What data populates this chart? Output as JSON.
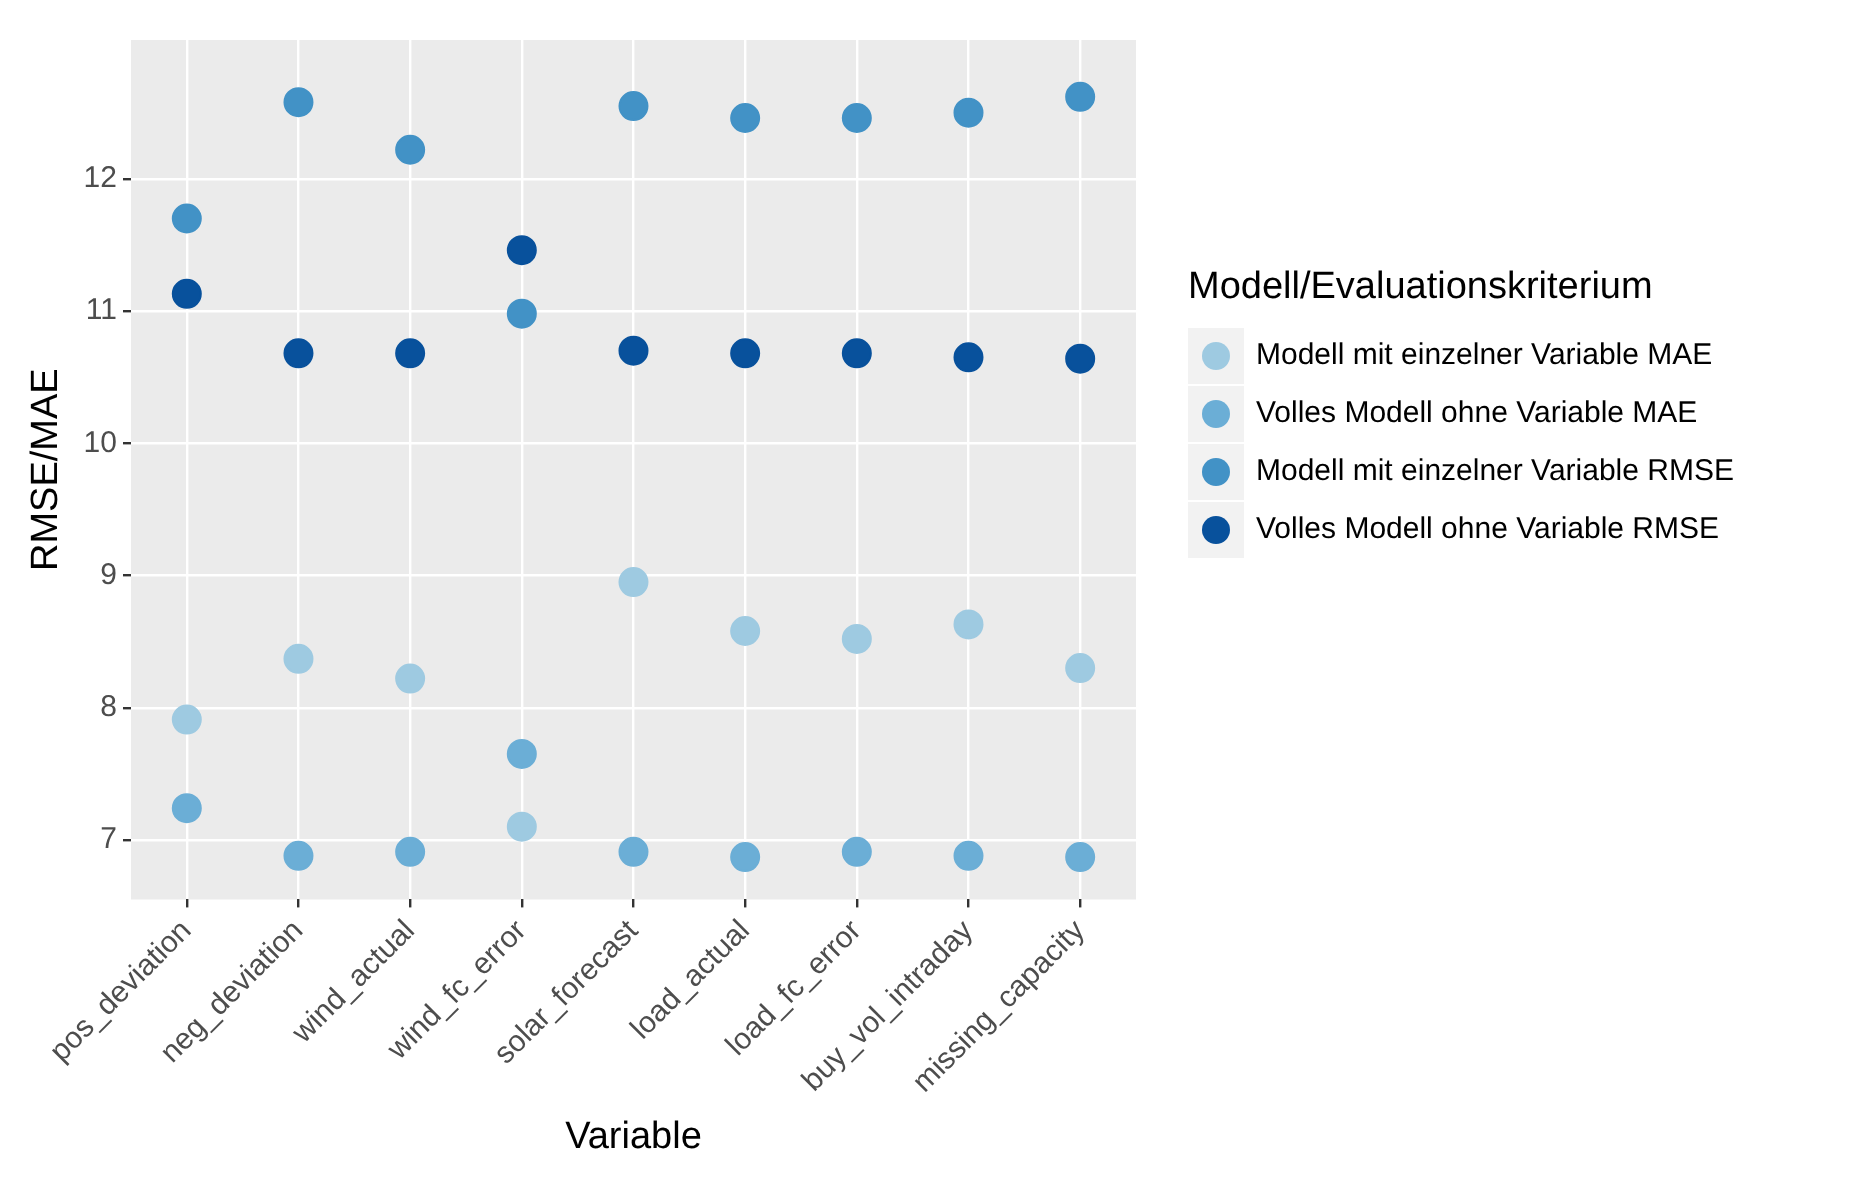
{
  "chart_data": {
    "type": "scatter",
    "xlabel": "Variable",
    "ylabel": "RMSE/MAE",
    "legend_title": "Modell/Evaluationskriterium",
    "legend": "right",
    "grid": true,
    "marker": "circle",
    "categories": [
      "pos_deviation",
      "neg_deviation",
      "wind_actual",
      "wind_fc_error",
      "solar_forecast",
      "load_actual",
      "load_fc_error",
      "buy_vol_intraday",
      "missing_capacity"
    ],
    "ylim": [
      6.55,
      13.05
    ],
    "yticks": [
      7,
      8,
      9,
      10,
      11,
      12
    ],
    "series": [
      {
        "name": "Modell mit einzelner Variable MAE",
        "color": "#9ecae1",
        "values": [
          7.91,
          8.37,
          8.22,
          7.1,
          8.95,
          8.58,
          8.52,
          8.63,
          8.3
        ]
      },
      {
        "name": "Volles Modell ohne Variable MAE",
        "color": "#6baed6",
        "values": [
          7.24,
          6.88,
          6.91,
          7.65,
          6.91,
          6.87,
          6.91,
          6.88,
          6.87
        ]
      },
      {
        "name": "Modell mit einzelner Variable RMSE",
        "color": "#4292c6",
        "values": [
          11.7,
          12.58,
          12.22,
          10.98,
          12.55,
          12.46,
          12.46,
          12.5,
          12.62
        ]
      },
      {
        "name": "Volles Modell ohne Variable RMSE",
        "color": "#08519c",
        "values": [
          11.13,
          10.68,
          10.68,
          11.46,
          10.7,
          10.68,
          10.68,
          10.65,
          10.64
        ]
      }
    ]
  }
}
